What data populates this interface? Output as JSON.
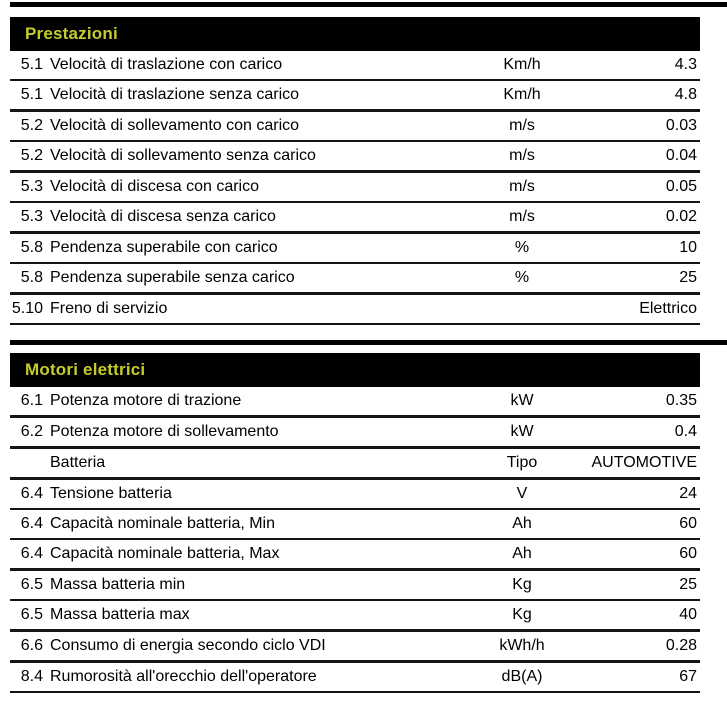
{
  "colors": {
    "section_header_bg": "#000000",
    "section_header_text": "#c3cc2b",
    "row_line": "#151515",
    "text": "#000000",
    "page_bg": "#ffffff"
  },
  "sections": [
    {
      "title": "Prestazioni",
      "rows": [
        {
          "num": "5.1",
          "label": "Velocità di traslazione con carico",
          "unit": "Km/h",
          "value": "4.3",
          "group_end": false
        },
        {
          "num": "5.1",
          "label": "Velocità di traslazione senza carico",
          "unit": "Km/h",
          "value": "4.8",
          "group_end": true
        },
        {
          "num": "5.2",
          "label": "Velocità di sollevamento con carico",
          "unit": "m/s",
          "value": "0.03",
          "group_end": false
        },
        {
          "num": "5.2",
          "label": "Velocità di sollevamento senza carico",
          "unit": "m/s",
          "value": "0.04",
          "group_end": true
        },
        {
          "num": "5.3",
          "label": "Velocità di discesa con carico",
          "unit": "m/s",
          "value": "0.05",
          "group_end": false
        },
        {
          "num": "5.3",
          "label": "Velocità di discesa senza carico",
          "unit": "m/s",
          "value": "0.02",
          "group_end": true
        },
        {
          "num": "5.8",
          "label": "Pendenza superabile con carico",
          "unit": "%",
          "value": "10",
          "group_end": false
        },
        {
          "num": "5.8",
          "label": "Pendenza superabile senza carico",
          "unit": "%",
          "value": "25",
          "group_end": true
        },
        {
          "num": "5.10",
          "label": "Freno di servizio",
          "unit": "",
          "value": "Elettrico",
          "group_end": false
        }
      ]
    },
    {
      "title": "Motori elettrici",
      "rows": [
        {
          "num": "6.1",
          "label": "Potenza motore di trazione",
          "unit": "kW",
          "value": "0.35",
          "group_end": true
        },
        {
          "num": "6.2",
          "label": "Potenza motore di sollevamento",
          "unit": "kW",
          "value": "0.4",
          "group_end": true
        },
        {
          "num": "",
          "label": "Batteria",
          "unit": "Tipo",
          "value": "AUTOMOTIVE",
          "group_end": true
        },
        {
          "num": "6.4",
          "label": "Tensione batteria",
          "unit": "V",
          "value": "24",
          "group_end": false
        },
        {
          "num": "6.4",
          "label": "Capacità nominale batteria, Min",
          "unit": "Ah",
          "value": "60",
          "group_end": false
        },
        {
          "num": "6.4",
          "label": "Capacità nominale batteria, Max",
          "unit": "Ah",
          "value": "60",
          "group_end": true
        },
        {
          "num": "6.5",
          "label": "Massa batteria min",
          "unit": "Kg",
          "value": "25",
          "group_end": false
        },
        {
          "num": "6.5",
          "label": "Massa batteria max",
          "unit": "Kg",
          "value": "40",
          "group_end": true
        },
        {
          "num": "6.6",
          "label": "Consumo di energia secondo ciclo VDI",
          "unit": "kWh/h",
          "value": "0.28",
          "group_end": true
        },
        {
          "num": "8.4",
          "label": "Rumorosità all'orecchio dell'operatore",
          "unit": "dB(A)",
          "value": "67",
          "group_end": false
        }
      ]
    }
  ]
}
